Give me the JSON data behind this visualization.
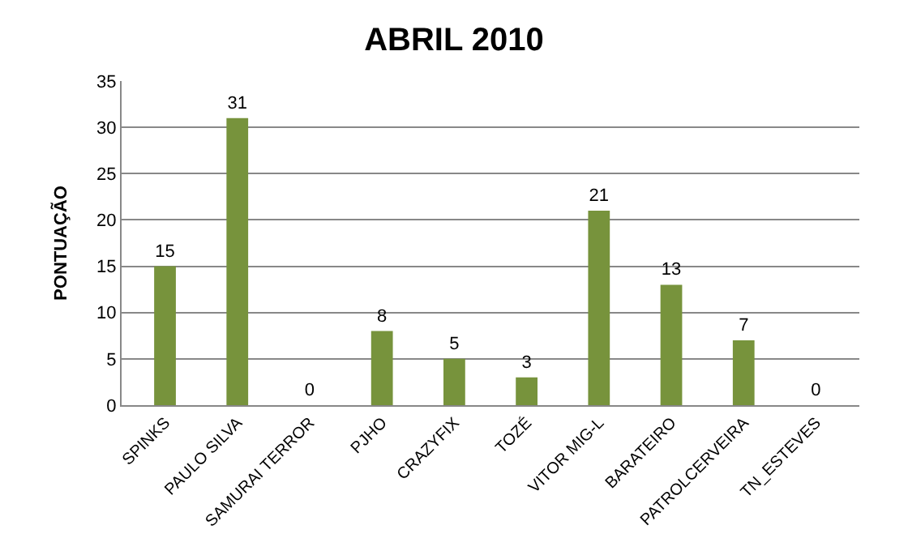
{
  "chart_data": {
    "type": "bar",
    "title": "ABRIL 2010",
    "ylabel": "PONTUAÇÃO",
    "categories": [
      "SPINKS",
      "PAULO SILVA",
      "SAMURAI TERROR",
      "PJHO",
      "CRAZYFIX",
      "TOZÉ",
      "VITOR MIG-L",
      "BARATEIRO",
      "PATROLCERVEIRA",
      "TN_ESTEVES"
    ],
    "values": [
      15,
      31,
      0,
      8,
      5,
      3,
      21,
      13,
      7,
      0
    ],
    "color": "#77933c",
    "ylim": [
      0,
      35
    ],
    "yticks": [
      0,
      5,
      10,
      15,
      20,
      25,
      30,
      35
    ],
    "grid": "y",
    "data_labels": true
  }
}
